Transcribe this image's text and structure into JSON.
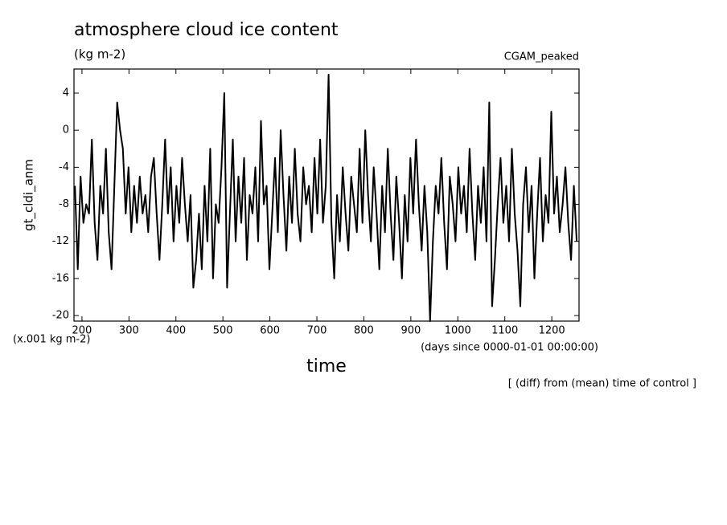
{
  "chart_data": {
    "type": "line",
    "title": "atmosphere cloud ice content",
    "subtitle": "(kg m-2)",
    "annotation_right": "CGAM_peaked",
    "y_label": "gt_cldi_anm",
    "y_units": "(x.001 kg m-2)",
    "x_units": "(days since 0000-01-01 00:00:00)",
    "x_label": "time",
    "footnote": "[ (diff) from (mean) time of control ]",
    "xlim": [
      183,
      1258
    ],
    "xticks": [
      200,
      300,
      400,
      500,
      600,
      700,
      800,
      900,
      1000,
      1100,
      1200
    ],
    "ylim": [
      -20.6,
      6.6
    ],
    "yticks": [
      4,
      0,
      -4,
      -8,
      -12,
      -16,
      -20
    ],
    "series": [
      {
        "color": "#000000",
        "x": [
          185,
          191,
          197,
          203,
          209,
          215,
          221,
          227,
          233,
          239,
          245,
          251,
          257,
          263,
          269,
          275,
          281,
          287,
          293,
          299,
          305,
          311,
          317,
          323,
          329,
          335,
          341,
          347,
          353,
          359,
          365,
          371,
          377,
          383,
          389,
          395,
          401,
          407,
          413,
          419,
          425,
          431,
          437,
          443,
          449,
          455,
          461,
          467,
          473,
          479,
          485,
          491,
          497,
          503,
          509,
          515,
          521,
          527,
          533,
          539,
          545,
          551,
          557,
          563,
          569,
          575,
          581,
          587,
          593,
          599,
          605,
          611,
          617,
          623,
          629,
          635,
          641,
          647,
          653,
          659,
          665,
          671,
          677,
          683,
          689,
          695,
          701,
          707,
          713,
          719,
          725,
          731,
          737,
          743,
          749,
          755,
          761,
          767,
          773,
          779,
          785,
          791,
          797,
          803,
          809,
          815,
          821,
          827,
          833,
          839,
          845,
          851,
          857,
          863,
          869,
          875,
          881,
          887,
          893,
          899,
          905,
          911,
          917,
          923,
          929,
          935,
          941,
          947,
          953,
          959,
          965,
          971,
          977,
          983,
          989,
          995,
          1001,
          1007,
          1013,
          1019,
          1025,
          1031,
          1037,
          1043,
          1049,
          1055,
          1061,
          1067,
          1073,
          1079,
          1085,
          1091,
          1097,
          1103,
          1109,
          1115,
          1121,
          1127,
          1133,
          1139,
          1145,
          1151,
          1157,
          1163,
          1169,
          1175,
          1181,
          1187,
          1193,
          1199,
          1205,
          1211,
          1217,
          1223,
          1229,
          1235,
          1241,
          1247,
          1253
        ],
        "values": [
          -6,
          -15,
          -5,
          -10,
          -8,
          -9,
          -1,
          -10,
          -14,
          -6,
          -9,
          -2,
          -11,
          -15,
          -6,
          3,
          0,
          -2,
          -9,
          -4,
          -11,
          -6,
          -10,
          -5,
          -9,
          -7,
          -11,
          -5,
          -3,
          -9,
          -14,
          -8,
          -1,
          -9,
          -4,
          -12,
          -6,
          -10,
          -3,
          -8,
          -12,
          -7,
          -17,
          -14,
          -9,
          -15,
          -6,
          -12,
          -2,
          -16,
          -8,
          -10,
          -4,
          4,
          -17,
          -9,
          -1,
          -12,
          -5,
          -10,
          -3,
          -14,
          -7,
          -9,
          -4,
          -12,
          1,
          -8,
          -6,
          -15,
          -9,
          -3,
          -11,
          0,
          -7,
          -13,
          -5,
          -10,
          -2,
          -9,
          -12,
          -4,
          -8,
          -6,
          -11,
          -3,
          -9,
          -1,
          -10,
          -6,
          6,
          -10,
          -16,
          -7,
          -12,
          -4,
          -9,
          -13,
          -5,
          -8,
          -11,
          -2,
          -10,
          0,
          -7,
          -12,
          -4,
          -9,
          -15,
          -6,
          -11,
          -2,
          -9,
          -14,
          -5,
          -10,
          -16,
          -7,
          -12,
          -3,
          -9,
          -1,
          -8,
          -13,
          -6,
          -11,
          -20.6,
          -12,
          -6,
          -9,
          -3,
          -10,
          -15,
          -5,
          -8,
          -12,
          -4,
          -9,
          -6,
          -11,
          -2,
          -9,
          -14,
          -6,
          -10,
          -4,
          -12,
          3,
          -19,
          -14,
          -8,
          -3,
          -10,
          -6,
          -12,
          -2,
          -9,
          -13,
          -19,
          -8,
          -4,
          -11,
          -6,
          -16,
          -9,
          -3,
          -12,
          -7,
          -10,
          2,
          -9,
          -5,
          -11,
          -8,
          -4,
          -10,
          -14,
          -6,
          -12
        ]
      }
    ]
  }
}
